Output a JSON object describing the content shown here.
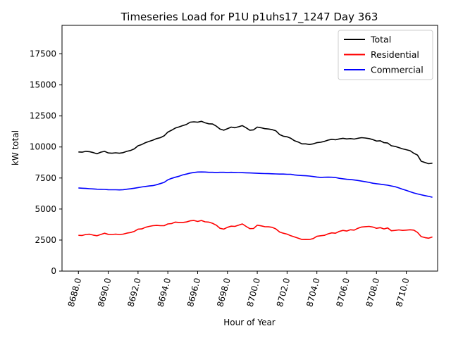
{
  "chart_data": {
    "type": "line",
    "title": "Timeseries Load for P1U p1uhs17_1247  Day 363",
    "xlabel": "Hour of Year",
    "ylabel": "kW total",
    "xlim": [
      8686.9,
      8712.1
    ],
    "ylim": [
      0,
      19800
    ],
    "xticks": [
      8688,
      8690,
      8692,
      8694,
      8696,
      8698,
      8700,
      8702,
      8704,
      8706,
      8708,
      8710
    ],
    "xtick_labels": [
      "8688.0",
      "8690.0",
      "8692.0",
      "8694.0",
      "8696.0",
      "8698.0",
      "8700.0",
      "8702.0",
      "8704.0",
      "8706.0",
      "8708.0",
      "8710.0"
    ],
    "yticks": [
      0,
      2500,
      5000,
      7500,
      10000,
      12500,
      15000,
      17500
    ],
    "ytick_labels": [
      "0",
      "2500",
      "5000",
      "7500",
      "10000",
      "12500",
      "15000",
      "17500"
    ],
    "legend_position": "upper right",
    "x_start": 8688,
    "x_step": 0.25,
    "series": [
      {
        "name": "Total",
        "color": "#000000",
        "values": [
          9600,
          9580,
          9650,
          9620,
          9550,
          9450,
          9580,
          9650,
          9520,
          9500,
          9530,
          9500,
          9540,
          9650,
          9720,
          9850,
          10100,
          10200,
          10350,
          10450,
          10550,
          10680,
          10750,
          10900,
          11200,
          11350,
          11520,
          11620,
          11720,
          11820,
          12000,
          12030,
          12000,
          12070,
          11950,
          11870,
          11850,
          11680,
          11450,
          11350,
          11480,
          11600,
          11550,
          11630,
          11720,
          11550,
          11350,
          11380,
          11600,
          11550,
          11480,
          11450,
          11400,
          11300,
          11000,
          10870,
          10820,
          10700,
          10500,
          10400,
          10250,
          10250,
          10200,
          10250,
          10350,
          10380,
          10450,
          10550,
          10620,
          10580,
          10650,
          10700,
          10650,
          10680,
          10640,
          10700,
          10750,
          10720,
          10680,
          10600,
          10480,
          10500,
          10350,
          10320,
          10100,
          10050,
          9950,
          9850,
          9780,
          9700,
          9500,
          9350,
          8850,
          8750,
          8650,
          8700
        ]
      },
      {
        "name": "Residential",
        "color": "#ff0000",
        "values": [
          2880,
          2870,
          2950,
          2970,
          2900,
          2850,
          2950,
          3050,
          2960,
          2950,
          2980,
          2950,
          2980,
          3060,
          3110,
          3200,
          3380,
          3400,
          3530,
          3600,
          3660,
          3680,
          3660,
          3660,
          3800,
          3830,
          3950,
          3920,
          3920,
          3960,
          4050,
          4080,
          4000,
          4080,
          3970,
          3950,
          3850,
          3700,
          3450,
          3380,
          3530,
          3620,
          3600,
          3700,
          3800,
          3600,
          3420,
          3430,
          3700,
          3650,
          3580,
          3570,
          3530,
          3400,
          3150,
          3050,
          2980,
          2850,
          2750,
          2650,
          2550,
          2560,
          2550,
          2620,
          2800,
          2850,
          2880,
          3000,
          3080,
          3050,
          3200,
          3280,
          3230,
          3330,
          3300,
          3450,
          3550,
          3580,
          3600,
          3550,
          3450,
          3500,
          3400,
          3480,
          3250,
          3280,
          3320,
          3280,
          3300,
          3330,
          3300,
          3120,
          2780,
          2700,
          2650,
          2750
        ]
      },
      {
        "name": "Commercial",
        "color": "#0000ff",
        "values": [
          6700,
          6680,
          6660,
          6640,
          6620,
          6600,
          6590,
          6580,
          6560,
          6550,
          6550,
          6540,
          6560,
          6600,
          6630,
          6680,
          6730,
          6780,
          6820,
          6860,
          6890,
          6960,
          7050,
          7150,
          7350,
          7470,
          7560,
          7640,
          7750,
          7820,
          7900,
          7950,
          7980,
          7990,
          7980,
          7960,
          7960,
          7950,
          7960,
          7960,
          7950,
          7960,
          7950,
          7940,
          7930,
          7920,
          7910,
          7900,
          7880,
          7870,
          7860,
          7850,
          7840,
          7830,
          7820,
          7820,
          7800,
          7800,
          7750,
          7720,
          7700,
          7680,
          7660,
          7620,
          7580,
          7550,
          7560,
          7570,
          7560,
          7540,
          7480,
          7440,
          7400,
          7380,
          7340,
          7300,
          7250,
          7200,
          7150,
          7080,
          7040,
          7000,
          6960,
          6920,
          6860,
          6800,
          6700,
          6600,
          6500,
          6400,
          6300,
          6220,
          6150,
          6080,
          6020,
          5950
        ]
      }
    ]
  }
}
